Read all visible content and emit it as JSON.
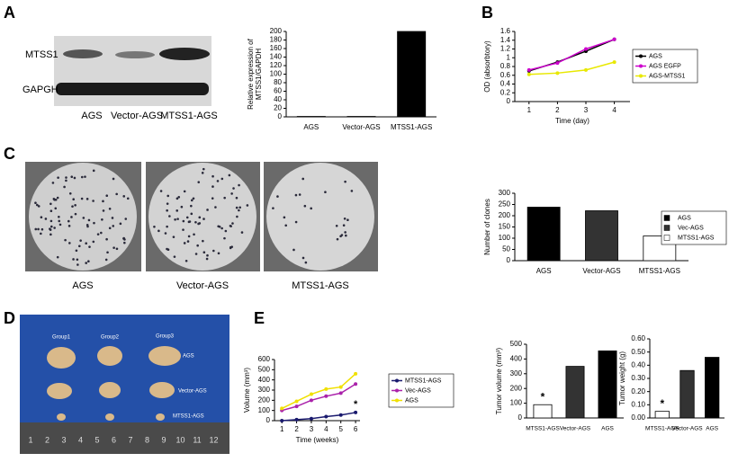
{
  "panel_labels": [
    "A",
    "B",
    "C",
    "D",
    "E"
  ],
  "blot": {
    "rows": [
      "MTSS1",
      "GAPGH"
    ],
    "lanes": [
      "AGS",
      "Vector-AGS",
      "MTSS1-AGS"
    ]
  },
  "colony": {
    "plates": [
      "AGS",
      "Vector-AGS",
      "MTSS1-AGS"
    ]
  },
  "tumor_photo": {
    "groups": [
      "Group1",
      "Group2",
      "Group3"
    ],
    "rows": [
      "AGS",
      "Vector-AGS",
      "MTSS1-AGS"
    ],
    "ruler": [
      "1",
      "2",
      "3",
      "4",
      "5",
      "6",
      "7",
      "8",
      "9",
      "10",
      "11",
      "12"
    ]
  },
  "chart_data": [
    {
      "type": "bar",
      "ylabel": [
        "Relative expression of",
        "MTSS1/GAPDH"
      ],
      "categories": [
        "AGS",
        "Vector-AGS",
        "MTSS1-AGS"
      ],
      "values": [
        1,
        1,
        200
      ],
      "color": "#000000",
      "ylim": [
        0,
        200
      ],
      "yticks": [
        0,
        20,
        40,
        60,
        80,
        100,
        120,
        140,
        160,
        180,
        200
      ]
    },
    {
      "type": "line",
      "xlabel": "Time (day)",
      "ylabel": [
        "OD (absorbtory)"
      ],
      "x": [
        1,
        2,
        3,
        4
      ],
      "xlim": [
        0.5,
        4.55
      ],
      "xticks": [
        1,
        2,
        3,
        4
      ],
      "ylim": [
        0,
        1.6
      ],
      "yticks": [
        0,
        0.2,
        0.4,
        0.6,
        0.8,
        1,
        1.2,
        1.4,
        1.6
      ],
      "series": [
        {
          "name": "AGS",
          "color": "#000000",
          "values": [
            0.7,
            0.9,
            1.15,
            1.42
          ]
        },
        {
          "name": "AGS EGFP",
          "color": "#cc00cc",
          "values": [
            0.72,
            0.88,
            1.2,
            1.42
          ]
        },
        {
          "name": "AGS-MTSS1",
          "color": "#e8e800",
          "values": [
            0.62,
            0.65,
            0.72,
            0.9
          ]
        }
      ],
      "legend": "right"
    },
    {
      "type": "bar",
      "ylabel": [
        "Number of clones"
      ],
      "categories": [
        "AGS",
        "Vector-AGS",
        "MTSS1-AGS"
      ],
      "values": [
        238,
        222,
        110
      ],
      "colors": [
        "#000000",
        "#333333",
        "#ffffff"
      ],
      "legend": [
        "AGS",
        "Vec-AGS",
        "MTSS1-AGS"
      ],
      "ylim": [
        0,
        300
      ],
      "yticks": [
        0,
        50,
        100,
        150,
        200,
        250,
        300
      ]
    },
    {
      "type": "line",
      "xlabel": "Time (weeks)",
      "ylabel": [
        "Volume (mm³)"
      ],
      "x": [
        1,
        2,
        3,
        4,
        5,
        6
      ],
      "xlim": [
        0.5,
        6.3
      ],
      "xticks": [
        1,
        2,
        3,
        4,
        5,
        6
      ],
      "ylim": [
        0,
        600
      ],
      "yticks": [
        0,
        100,
        200,
        300,
        400,
        500,
        600
      ],
      "series": [
        {
          "name": "MTSS1-AGS",
          "color": "#1a1a6e",
          "values": [
            0,
            10,
            20,
            40,
            55,
            80
          ]
        },
        {
          "name": "Vec-AGS",
          "color": "#aa22aa",
          "values": [
            100,
            140,
            200,
            240,
            270,
            360
          ]
        },
        {
          "name": "AGS",
          "color": "#f0e000",
          "values": [
            120,
            190,
            260,
            310,
            330,
            460
          ]
        }
      ],
      "legend": "right",
      "annotations": [
        "*"
      ]
    },
    {
      "type": "bar",
      "ylabel": [
        "Tumor volume (mm³)"
      ],
      "categories": [
        "MTSS1-AGS",
        "Vector-AGS",
        "AGS"
      ],
      "values": [
        90,
        350,
        455
      ],
      "colors": [
        "#ffffff",
        "#333333",
        "#000000"
      ],
      "ylim": [
        0,
        500
      ],
      "yticks": [
        0,
        100,
        200,
        300,
        400,
        500
      ],
      "annotations": [
        "*"
      ]
    },
    {
      "type": "bar",
      "ylabel": [
        "Tumor weight (g)"
      ],
      "categories": [
        "MTSS1-AGS",
        "Vector-AGS",
        "AGS"
      ],
      "values": [
        0.05,
        0.36,
        0.46
      ],
      "colors": [
        "#ffffff",
        "#333333",
        "#000000"
      ],
      "ylim": [
        0,
        0.6
      ],
      "yticks": [
        {
          "value": 0,
          "label": "0.00"
        },
        {
          "value": 0.1,
          "label": "0.10"
        },
        {
          "value": 0.2,
          "label": "0.20"
        },
        {
          "value": 0.3,
          "label": "0.30"
        },
        {
          "value": 0.4,
          "label": "0.40"
        },
        {
          "value": 0.5,
          "label": "0.50"
        },
        {
          "value": 0.6,
          "label": "0.60"
        }
      ],
      "annotations": [
        "*"
      ]
    }
  ]
}
